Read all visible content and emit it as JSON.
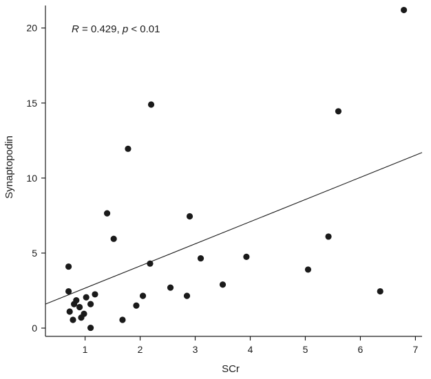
{
  "chart_data": {
    "type": "scatter",
    "xlabel": "SCr",
    "ylabel": "Synaptopodin",
    "xlim": [
      0.28,
      7.12
    ],
    "ylim": [
      -0.55,
      21.5
    ],
    "xticks": [
      1,
      2,
      3,
      4,
      5,
      6,
      7
    ],
    "yticks": [
      0,
      5,
      10,
      15,
      20
    ],
    "grid": false,
    "annotation": {
      "r_label": "R",
      "r_text": " = 0.429, ",
      "p_label": "p",
      "p_text": " < 0.01"
    },
    "trendline": {
      "x": [
        0.28,
        7.12
      ],
      "y": [
        1.6,
        11.7
      ]
    },
    "points": [
      {
        "x": 0.7,
        "y": 4.1
      },
      {
        "x": 0.7,
        "y": 2.45
      },
      {
        "x": 0.72,
        "y": 1.1
      },
      {
        "x": 0.78,
        "y": 0.55
      },
      {
        "x": 0.8,
        "y": 1.6
      },
      {
        "x": 0.84,
        "y": 1.85
      },
      {
        "x": 0.9,
        "y": 1.4
      },
      {
        "x": 0.93,
        "y": 0.7
      },
      {
        "x": 0.98,
        "y": 0.95
      },
      {
        "x": 1.02,
        "y": 2.05
      },
      {
        "x": 1.1,
        "y": 1.6
      },
      {
        "x": 1.1,
        "y": 0.02
      },
      {
        "x": 1.18,
        "y": 2.25
      },
      {
        "x": 1.4,
        "y": 7.65
      },
      {
        "x": 1.52,
        "y": 5.95
      },
      {
        "x": 1.68,
        "y": 0.55
      },
      {
        "x": 1.78,
        "y": 11.95
      },
      {
        "x": 1.93,
        "y": 1.5
      },
      {
        "x": 2.05,
        "y": 2.15
      },
      {
        "x": 2.18,
        "y": 4.3
      },
      {
        "x": 2.2,
        "y": 14.9
      },
      {
        "x": 2.55,
        "y": 2.7
      },
      {
        "x": 2.85,
        "y": 2.15
      },
      {
        "x": 2.9,
        "y": 7.45
      },
      {
        "x": 3.1,
        "y": 4.65
      },
      {
        "x": 3.5,
        "y": 2.9
      },
      {
        "x": 3.93,
        "y": 4.75
      },
      {
        "x": 5.05,
        "y": 3.9
      },
      {
        "x": 5.42,
        "y": 6.1
      },
      {
        "x": 5.6,
        "y": 14.45
      },
      {
        "x": 6.36,
        "y": 2.45
      },
      {
        "x": 6.79,
        "y": 21.2
      }
    ]
  }
}
